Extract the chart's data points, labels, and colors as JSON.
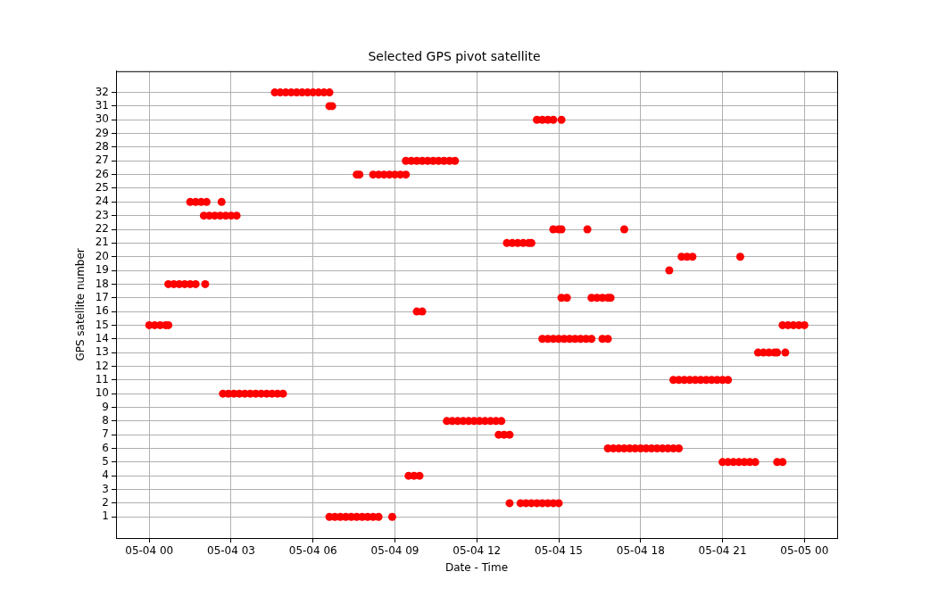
{
  "chart_data": {
    "type": "scatter",
    "title": "Selected GPS pivot satellite",
    "xlabel": "Date - Time",
    "ylabel": "GPS satellite number",
    "color": "#ff0000",
    "marker": "circle",
    "grid": true,
    "legend": false,
    "xlim": [
      "--05-03T22:47",
      "--05-05T01:12"
    ],
    "ylim": [
      -0.55,
      33.55
    ],
    "xticks": [
      {
        "value": "--05-04T00:00",
        "label": "05-04 00"
      },
      {
        "value": "--05-04T03:00",
        "label": "05-04 03"
      },
      {
        "value": "--05-04T06:00",
        "label": "05-04 06"
      },
      {
        "value": "--05-04T09:00",
        "label": "05-04 09"
      },
      {
        "value": "--05-04T12:00",
        "label": "05-04 12"
      },
      {
        "value": "--05-04T15:00",
        "label": "05-04 15"
      },
      {
        "value": "--05-04T18:00",
        "label": "05-04 18"
      },
      {
        "value": "--05-04T21:00",
        "label": "05-04 21"
      },
      {
        "value": "--05-05T00:00",
        "label": "05-05 00"
      }
    ],
    "yticks": [
      1,
      2,
      3,
      4,
      5,
      6,
      7,
      8,
      9,
      10,
      11,
      12,
      13,
      14,
      15,
      16,
      17,
      18,
      19,
      20,
      21,
      22,
      23,
      24,
      25,
      26,
      27,
      28,
      29,
      30,
      31,
      32
    ],
    "x": [
      "--05-04T04:36",
      "--05-04T04:48",
      "--05-04T05:00",
      "--05-04T05:12",
      "--05-04T05:24",
      "--05-04T05:36",
      "--05-04T05:48",
      "--05-04T06:00",
      "--05-04T06:12",
      "--05-04T06:24",
      "--05-04T06:36",
      "--05-04T06:36",
      "--05-04T06:42",
      "--05-04T14:12",
      "--05-04T14:24",
      "--05-04T14:36",
      "--05-04T14:48",
      "--05-04T15:06",
      "--05-04T09:24",
      "--05-04T09:36",
      "--05-04T09:48",
      "--05-04T10:00",
      "--05-04T10:12",
      "--05-04T10:24",
      "--05-04T10:36",
      "--05-04T10:48",
      "--05-04T11:00",
      "--05-04T11:12",
      "--05-04T07:36",
      "--05-04T07:42",
      "--05-04T08:12",
      "--05-04T08:24",
      "--05-04T08:36",
      "--05-04T08:48",
      "--05-04T09:00",
      "--05-04T09:12",
      "--05-04T09:24",
      "--05-04T01:30",
      "--05-04T01:42",
      "--05-04T01:54",
      "--05-04T02:06",
      "--05-04T02:39",
      "--05-04T02:00",
      "--05-04T02:12",
      "--05-04T02:24",
      "--05-04T02:36",
      "--05-04T02:48",
      "--05-04T03:00",
      "--05-04T03:12",
      "--05-04T14:48",
      "--05-04T15:00",
      "--05-04T15:06",
      "--05-04T16:03",
      "--05-04T17:24",
      "--05-04T13:06",
      "--05-04T13:18",
      "--05-04T13:30",
      "--05-04T13:42",
      "--05-04T13:54",
      "--05-04T14:00",
      "--05-04T19:30",
      "--05-04T19:42",
      "--05-04T19:54",
      "--05-04T21:39",
      "--05-04T19:03",
      "--05-04T00:42",
      "--05-04T00:54",
      "--05-04T01:06",
      "--05-04T01:18",
      "--05-04T01:30",
      "--05-04T01:42",
      "--05-04T02:03",
      "--05-04T15:06",
      "--05-04T15:18",
      "--05-04T16:12",
      "--05-04T16:24",
      "--05-04T16:36",
      "--05-04T16:48",
      "--05-04T16:54",
      "--05-04T09:48",
      "--05-04T10:00",
      "--05-04T00:00",
      "--05-04T00:12",
      "--05-04T00:24",
      "--05-04T00:36",
      "--05-04T00:42",
      "--05-04T23:12",
      "--05-04T23:24",
      "--05-04T23:36",
      "--05-04T23:48",
      "--05-05T00:00",
      "--05-04T14:24",
      "--05-04T14:36",
      "--05-04T14:48",
      "--05-04T15:00",
      "--05-04T15:12",
      "--05-04T15:24",
      "--05-04T15:36",
      "--05-04T15:48",
      "--05-04T16:00",
      "--05-04T16:12",
      "--05-04T16:36",
      "--05-04T16:48",
      "--05-04T22:18",
      "--05-04T22:30",
      "--05-04T22:42",
      "--05-04T22:54",
      "--05-04T23:00",
      "--05-04T23:18",
      "--05-04T19:12",
      "--05-04T19:24",
      "--05-04T19:36",
      "--05-04T19:48",
      "--05-04T20:00",
      "--05-04T20:12",
      "--05-04T20:24",
      "--05-04T20:36",
      "--05-04T20:48",
      "--05-04T21:00",
      "--05-04T21:12",
      "--05-04T02:42",
      "--05-04T02:54",
      "--05-04T03:06",
      "--05-04T03:18",
      "--05-04T03:30",
      "--05-04T03:42",
      "--05-04T03:54",
      "--05-04T04:06",
      "--05-04T04:18",
      "--05-04T04:30",
      "--05-04T04:42",
      "--05-04T04:54",
      "--05-04T10:54",
      "--05-04T11:06",
      "--05-04T11:18",
      "--05-04T11:30",
      "--05-04T11:42",
      "--05-04T11:54",
      "--05-04T12:06",
      "--05-04T12:18",
      "--05-04T12:30",
      "--05-04T12:42",
      "--05-04T12:54",
      "--05-04T12:48",
      "--05-04T13:00",
      "--05-04T13:12",
      "--05-04T16:48",
      "--05-04T17:00",
      "--05-04T17:12",
      "--05-04T17:24",
      "--05-04T17:36",
      "--05-04T17:48",
      "--05-04T18:00",
      "--05-04T18:12",
      "--05-04T18:24",
      "--05-04T18:36",
      "--05-04T18:48",
      "--05-04T19:00",
      "--05-04T19:12",
      "--05-04T19:24",
      "--05-04T21:00",
      "--05-04T21:12",
      "--05-04T21:24",
      "--05-04T21:36",
      "--05-04T21:48",
      "--05-04T22:00",
      "--05-04T22:12",
      "--05-04T23:00",
      "--05-04T23:12",
      "--05-04T09:30",
      "--05-04T09:42",
      "--05-04T09:54",
      "--05-04T13:12",
      "--05-04T13:36",
      "--05-04T13:48",
      "--05-04T14:00",
      "--05-04T14:12",
      "--05-04T14:24",
      "--05-04T14:36",
      "--05-04T14:48",
      "--05-04T15:00",
      "--05-04T06:36",
      "--05-04T06:48",
      "--05-04T07:00",
      "--05-04T07:12",
      "--05-04T07:24",
      "--05-04T07:36",
      "--05-04T07:48",
      "--05-04T08:00",
      "--05-04T08:12",
      "--05-04T08:24",
      "--05-04T08:54"
    ],
    "values": [
      32,
      32,
      32,
      32,
      32,
      32,
      32,
      32,
      32,
      32,
      32,
      31,
      31,
      30,
      30,
      30,
      30,
      30,
      27,
      27,
      27,
      27,
      27,
      27,
      27,
      27,
      27,
      27,
      26,
      26,
      26,
      26,
      26,
      26,
      26,
      26,
      26,
      24,
      24,
      24,
      24,
      24,
      23,
      23,
      23,
      23,
      23,
      23,
      23,
      22,
      22,
      22,
      22,
      22,
      21,
      21,
      21,
      21,
      21,
      21,
      20,
      20,
      20,
      20,
      19,
      18,
      18,
      18,
      18,
      18,
      18,
      18,
      17,
      17,
      17,
      17,
      17,
      17,
      17,
      16,
      16,
      15,
      15,
      15,
      15,
      15,
      15,
      15,
      15,
      15,
      15,
      14,
      14,
      14,
      14,
      14,
      14,
      14,
      14,
      14,
      14,
      14,
      14,
      13,
      13,
      13,
      13,
      13,
      13,
      11,
      11,
      11,
      11,
      11,
      11,
      11,
      11,
      11,
      11,
      11,
      10,
      10,
      10,
      10,
      10,
      10,
      10,
      10,
      10,
      10,
      10,
      10,
      8,
      8,
      8,
      8,
      8,
      8,
      8,
      8,
      8,
      8,
      8,
      7,
      7,
      7,
      6,
      6,
      6,
      6,
      6,
      6,
      6,
      6,
      6,
      6,
      6,
      6,
      6,
      6,
      5,
      5,
      5,
      5,
      5,
      5,
      5,
      5,
      5,
      4,
      4,
      4,
      2,
      2,
      2,
      2,
      2,
      2,
      2,
      2,
      2,
      1,
      1,
      1,
      1,
      1,
      1,
      1,
      1,
      1,
      1,
      1
    ]
  }
}
